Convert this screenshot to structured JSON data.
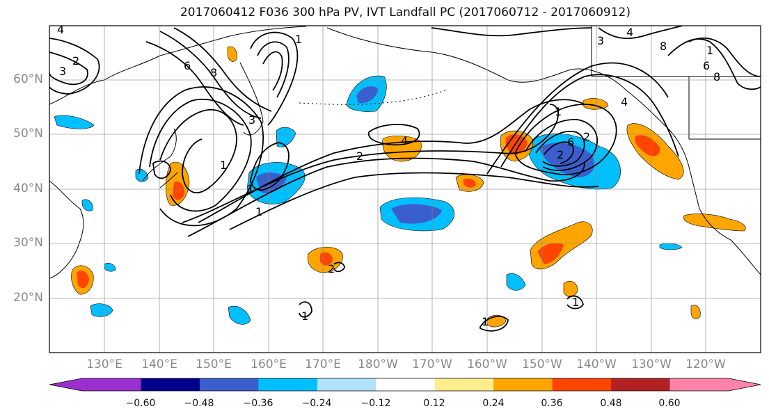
{
  "title": "2017060412 F036 300 hPa PV, IVT Landfall PC (2017060712 - 2017060912)",
  "lat_labels": [
    "60°N",
    "50°N",
    "40°N",
    "30°N",
    "20°N"
  ],
  "lon_labels": [
    "130°E",
    "140°E",
    "150°E",
    "160°E",
    "170°E",
    "180°W",
    "170°W",
    "160°W",
    "150°W",
    "140°W",
    "130°W",
    "120°W"
  ],
  "colorbar": {
    "ticks": [
      "−0.60",
      "−0.48",
      "−0.36",
      "−0.24",
      "−0.12",
      "0.12",
      "0.24",
      "0.36",
      "0.48",
      "0.60"
    ],
    "colors": [
      "#9b30d0",
      "#00008b",
      "#3a5fcd",
      "#00bfff",
      "#b0e2ff",
      "#ffffff",
      "#ffec8b",
      "#ffa500",
      "#ff4500",
      "#b22222",
      "#ff82ab"
    ]
  },
  "contour_labels": [
    "4",
    "2",
    "3",
    "6",
    "8",
    "1",
    "1",
    "3",
    "1",
    "4",
    "2",
    "4",
    "3",
    "1",
    "6",
    "8",
    "1",
    "2",
    "4",
    "2",
    "6",
    "8",
    "1",
    "2",
    "1",
    "1",
    "1"
  ]
}
